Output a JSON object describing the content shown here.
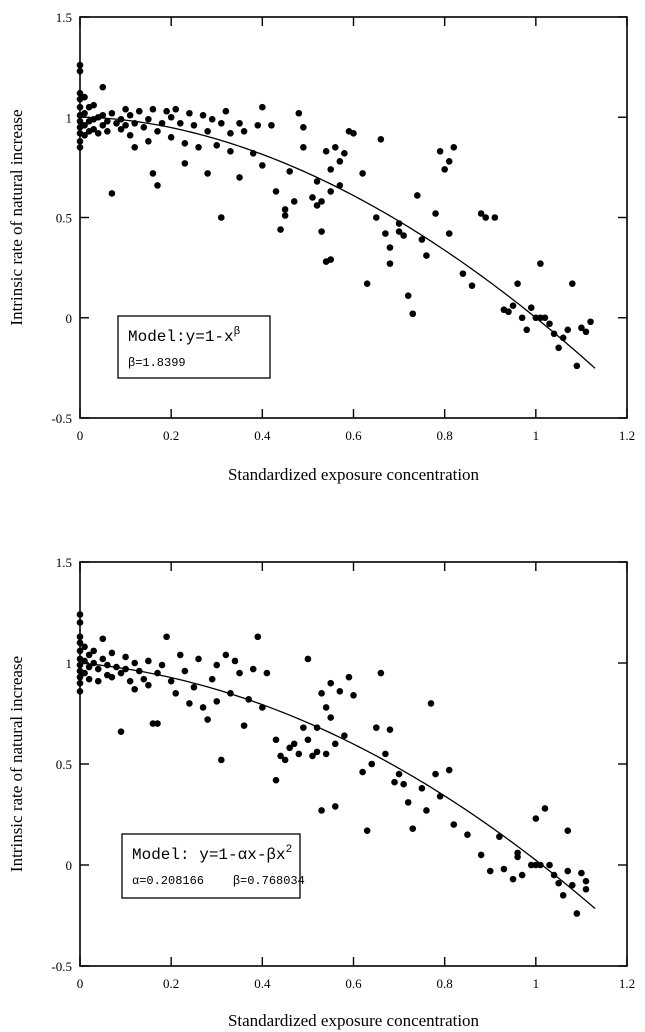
{
  "chart_data": [
    {
      "type": "scatter",
      "title": "",
      "xlabel": "Standardized exposure concentration",
      "ylabel": "Intrinsic rate of natural increase",
      "xlim": [
        0,
        1.2
      ],
      "ylim": [
        -0.5,
        1.5
      ],
      "x_ticks": [
        "0",
        "0.2",
        "0.4",
        "0.6",
        "0.8",
        "1",
        "1.2"
      ],
      "y_ticks": [
        "-0.5",
        "0",
        "0.5",
        "1",
        "1.5"
      ],
      "model_label": "Model:y=1-x",
      "model_superscript": "β",
      "params_text": "β=1.8399",
      "fit": {
        "form": "power",
        "beta": 1.8399,
        "x_range": [
          0,
          1.13
        ]
      },
      "points": [
        [
          0.0,
          1.26
        ],
        [
          0.0,
          1.23
        ],
        [
          0.0,
          1.12
        ],
        [
          0.0,
          1.09
        ],
        [
          0.0,
          1.05
        ],
        [
          0.0,
          1.01
        ],
        [
          0.0,
          0.98
        ],
        [
          0.0,
          0.95
        ],
        [
          0.0,
          0.92
        ],
        [
          0.0,
          0.88
        ],
        [
          0.0,
          0.85
        ],
        [
          0.01,
          1.1
        ],
        [
          0.01,
          1.02
        ],
        [
          0.01,
          0.96
        ],
        [
          0.01,
          0.91
        ],
        [
          0.02,
          1.05
        ],
        [
          0.02,
          0.98
        ],
        [
          0.02,
          0.93
        ],
        [
          0.03,
          1.06
        ],
        [
          0.03,
          0.99
        ],
        [
          0.03,
          0.94
        ],
        [
          0.04,
          1.0
        ],
        [
          0.04,
          0.92
        ],
        [
          0.05,
          1.15
        ],
        [
          0.05,
          1.01
        ],
        [
          0.05,
          0.96
        ],
        [
          0.06,
          0.98
        ],
        [
          0.06,
          0.93
        ],
        [
          0.07,
          1.02
        ],
        [
          0.07,
          0.62
        ],
        [
          0.08,
          0.97
        ],
        [
          0.09,
          0.99
        ],
        [
          0.09,
          0.94
        ],
        [
          0.1,
          1.04
        ],
        [
          0.1,
          0.96
        ],
        [
          0.11,
          1.01
        ],
        [
          0.11,
          0.91
        ],
        [
          0.12,
          0.97
        ],
        [
          0.12,
          0.85
        ],
        [
          0.13,
          1.03
        ],
        [
          0.14,
          0.95
        ],
        [
          0.15,
          0.99
        ],
        [
          0.15,
          0.88
        ],
        [
          0.16,
          1.04
        ],
        [
          0.16,
          0.72
        ],
        [
          0.17,
          0.66
        ],
        [
          0.17,
          0.93
        ],
        [
          0.18,
          0.97
        ],
        [
          0.19,
          1.03
        ],
        [
          0.2,
          0.9
        ],
        [
          0.2,
          1.0
        ],
        [
          0.21,
          1.04
        ],
        [
          0.22,
          0.97
        ],
        [
          0.23,
          0.77
        ],
        [
          0.23,
          0.87
        ],
        [
          0.24,
          1.02
        ],
        [
          0.25,
          0.96
        ],
        [
          0.26,
          0.85
        ],
        [
          0.27,
          1.01
        ],
        [
          0.28,
          0.93
        ],
        [
          0.28,
          0.72
        ],
        [
          0.29,
          0.99
        ],
        [
          0.3,
          0.86
        ],
        [
          0.31,
          0.5
        ],
        [
          0.31,
          0.97
        ],
        [
          0.32,
          1.03
        ],
        [
          0.33,
          0.92
        ],
        [
          0.33,
          0.83
        ],
        [
          0.35,
          0.97
        ],
        [
          0.35,
          0.7
        ],
        [
          0.36,
          0.93
        ],
        [
          0.38,
          0.82
        ],
        [
          0.39,
          0.96
        ],
        [
          0.4,
          1.05
        ],
        [
          0.4,
          0.76
        ],
        [
          0.42,
          0.96
        ],
        [
          0.43,
          0.63
        ],
        [
          0.44,
          0.44
        ],
        [
          0.45,
          0.51
        ],
        [
          0.45,
          0.54
        ],
        [
          0.46,
          0.73
        ],
        [
          0.47,
          0.58
        ],
        [
          0.48,
          1.02
        ],
        [
          0.49,
          0.85
        ],
        [
          0.49,
          0.95
        ],
        [
          0.51,
          0.6
        ],
        [
          0.52,
          0.56
        ],
        [
          0.52,
          0.68
        ],
        [
          0.53,
          0.58
        ],
        [
          0.53,
          0.43
        ],
        [
          0.54,
          0.28
        ],
        [
          0.54,
          0.83
        ],
        [
          0.55,
          0.74
        ],
        [
          0.55,
          0.63
        ],
        [
          0.55,
          0.29
        ],
        [
          0.56,
          0.85
        ],
        [
          0.57,
          0.78
        ],
        [
          0.57,
          0.66
        ],
        [
          0.58,
          0.82
        ],
        [
          0.59,
          0.93
        ],
        [
          0.6,
          0.92
        ],
        [
          0.62,
          0.72
        ],
        [
          0.63,
          0.17
        ],
        [
          0.65,
          0.5
        ],
        [
          0.66,
          0.89
        ],
        [
          0.67,
          0.42
        ],
        [
          0.68,
          0.35
        ],
        [
          0.68,
          0.27
        ],
        [
          0.7,
          0.47
        ],
        [
          0.7,
          0.43
        ],
        [
          0.71,
          0.41
        ],
        [
          0.72,
          0.11
        ],
        [
          0.73,
          0.02
        ],
        [
          0.74,
          0.61
        ],
        [
          0.75,
          0.39
        ],
        [
          0.76,
          0.31
        ],
        [
          0.78,
          0.52
        ],
        [
          0.79,
          0.83
        ],
        [
          0.8,
          0.74
        ],
        [
          0.81,
          0.78
        ],
        [
          0.81,
          0.42
        ],
        [
          0.82,
          0.85
        ],
        [
          0.84,
          0.22
        ],
        [
          0.86,
          0.16
        ],
        [
          0.88,
          0.52
        ],
        [
          0.89,
          0.5
        ],
        [
          0.91,
          0.5
        ],
        [
          0.93,
          0.04
        ],
        [
          0.94,
          0.03
        ],
        [
          0.95,
          0.06
        ],
        [
          0.96,
          0.17
        ],
        [
          0.97,
          0.0
        ],
        [
          0.98,
          -0.06
        ],
        [
          0.99,
          0.05
        ],
        [
          1.0,
          0.0
        ],
        [
          1.01,
          0.0
        ],
        [
          1.01,
          0.27
        ],
        [
          1.02,
          0.0
        ],
        [
          1.03,
          -0.03
        ],
        [
          1.04,
          -0.08
        ],
        [
          1.05,
          -0.15
        ],
        [
          1.06,
          -0.1
        ],
        [
          1.07,
          -0.06
        ],
        [
          1.08,
          0.17
        ],
        [
          1.09,
          -0.24
        ],
        [
          1.1,
          -0.05
        ],
        [
          1.11,
          -0.07
        ],
        [
          1.12,
          -0.02
        ]
      ]
    },
    {
      "type": "scatter",
      "title": "",
      "xlabel": "Standardized exposure concentration",
      "ylabel": "Intrinsic rate of natural increase",
      "xlim": [
        0,
        1.2
      ],
      "ylim": [
        -0.5,
        1.5
      ],
      "x_ticks": [
        "0",
        "0.2",
        "0.4",
        "0.6",
        "0.8",
        "1",
        "1.2"
      ],
      "y_ticks": [
        "-0.5",
        "0",
        "0.5",
        "1",
        "1.5"
      ],
      "model_label": "Model: y=1-αx-βx",
      "model_superscript": "2",
      "params_text": "α=0.208166    β=0.768034",
      "fit": {
        "form": "quadratic",
        "alpha": 0.208166,
        "beta": 0.768034,
        "x_range": [
          0,
          1.13
        ]
      },
      "points": [
        [
          0.0,
          1.24
        ],
        [
          0.0,
          1.2
        ],
        [
          0.0,
          1.13
        ],
        [
          0.0,
          1.1
        ],
        [
          0.0,
          1.06
        ],
        [
          0.0,
          1.02
        ],
        [
          0.0,
          0.99
        ],
        [
          0.0,
          0.96
        ],
        [
          0.0,
          0.93
        ],
        [
          0.0,
          0.9
        ],
        [
          0.0,
          0.86
        ],
        [
          0.01,
          1.08
        ],
        [
          0.01,
          1.01
        ],
        [
          0.01,
          0.95
        ],
        [
          0.02,
          1.04
        ],
        [
          0.02,
          0.98
        ],
        [
          0.02,
          0.92
        ],
        [
          0.03,
          1.06
        ],
        [
          0.03,
          1.0
        ],
        [
          0.04,
          0.97
        ],
        [
          0.04,
          0.91
        ],
        [
          0.05,
          1.12
        ],
        [
          0.05,
          1.02
        ],
        [
          0.06,
          0.99
        ],
        [
          0.06,
          0.94
        ],
        [
          0.07,
          1.05
        ],
        [
          0.07,
          0.93
        ],
        [
          0.08,
          0.98
        ],
        [
          0.09,
          0.95
        ],
        [
          0.09,
          0.66
        ],
        [
          0.1,
          1.03
        ],
        [
          0.1,
          0.97
        ],
        [
          0.11,
          0.91
        ],
        [
          0.12,
          1.0
        ],
        [
          0.12,
          0.87
        ],
        [
          0.13,
          0.96
        ],
        [
          0.14,
          0.92
        ],
        [
          0.15,
          1.01
        ],
        [
          0.15,
          0.89
        ],
        [
          0.16,
          0.7
        ],
        [
          0.17,
          0.7
        ],
        [
          0.17,
          0.95
        ],
        [
          0.18,
          0.99
        ],
        [
          0.19,
          1.13
        ],
        [
          0.2,
          0.91
        ],
        [
          0.21,
          0.85
        ],
        [
          0.22,
          1.04
        ],
        [
          0.23,
          0.96
        ],
        [
          0.24,
          0.8
        ],
        [
          0.25,
          0.88
        ],
        [
          0.26,
          1.02
        ],
        [
          0.27,
          0.78
        ],
        [
          0.28,
          0.72
        ],
        [
          0.29,
          0.92
        ],
        [
          0.3,
          0.99
        ],
        [
          0.3,
          0.81
        ],
        [
          0.31,
          0.52
        ],
        [
          0.32,
          1.04
        ],
        [
          0.33,
          0.85
        ],
        [
          0.34,
          1.01
        ],
        [
          0.35,
          0.95
        ],
        [
          0.36,
          0.69
        ],
        [
          0.37,
          0.82
        ],
        [
          0.38,
          0.97
        ],
        [
          0.39,
          1.13
        ],
        [
          0.4,
          0.78
        ],
        [
          0.41,
          0.95
        ],
        [
          0.43,
          0.42
        ],
        [
          0.43,
          0.62
        ],
        [
          0.44,
          0.54
        ],
        [
          0.45,
          0.52
        ],
        [
          0.46,
          0.58
        ],
        [
          0.47,
          0.6
        ],
        [
          0.48,
          0.55
        ],
        [
          0.49,
          0.68
        ],
        [
          0.5,
          1.02
        ],
        [
          0.5,
          0.62
        ],
        [
          0.51,
          0.54
        ],
        [
          0.52,
          0.56
        ],
        [
          0.52,
          0.68
        ],
        [
          0.53,
          0.85
        ],
        [
          0.53,
          0.27
        ],
        [
          0.54,
          0.78
        ],
        [
          0.54,
          0.55
        ],
        [
          0.55,
          0.9
        ],
        [
          0.55,
          0.73
        ],
        [
          0.56,
          0.6
        ],
        [
          0.56,
          0.29
        ],
        [
          0.57,
          0.86
        ],
        [
          0.58,
          0.64
        ],
        [
          0.59,
          0.93
        ],
        [
          0.6,
          0.84
        ],
        [
          0.62,
          0.46
        ],
        [
          0.63,
          0.17
        ],
        [
          0.64,
          0.5
        ],
        [
          0.65,
          0.68
        ],
        [
          0.66,
          0.95
        ],
        [
          0.67,
          0.55
        ],
        [
          0.68,
          0.67
        ],
        [
          0.69,
          0.41
        ],
        [
          0.7,
          0.45
        ],
        [
          0.71,
          0.4
        ],
        [
          0.72,
          0.31
        ],
        [
          0.73,
          0.18
        ],
        [
          0.75,
          0.38
        ],
        [
          0.76,
          0.27
        ],
        [
          0.77,
          0.8
        ],
        [
          0.78,
          0.45
        ],
        [
          0.79,
          0.34
        ],
        [
          0.81,
          0.47
        ],
        [
          0.82,
          0.2
        ],
        [
          0.85,
          0.15
        ],
        [
          0.88,
          0.05
        ],
        [
          0.9,
          -0.03
        ],
        [
          0.92,
          0.14
        ],
        [
          0.93,
          -0.02
        ],
        [
          0.95,
          -0.07
        ],
        [
          0.96,
          0.04
        ],
        [
          0.96,
          0.06
        ],
        [
          0.97,
          -0.05
        ],
        [
          0.99,
          0.0
        ],
        [
          1.0,
          0.0
        ],
        [
          1.0,
          0.23
        ],
        [
          1.01,
          0.0
        ],
        [
          1.02,
          0.28
        ],
        [
          1.03,
          0.0
        ],
        [
          1.04,
          -0.05
        ],
        [
          1.05,
          -0.09
        ],
        [
          1.06,
          -0.15
        ],
        [
          1.07,
          -0.03
        ],
        [
          1.07,
          0.17
        ],
        [
          1.08,
          -0.1
        ],
        [
          1.09,
          -0.24
        ],
        [
          1.1,
          -0.04
        ],
        [
          1.11,
          -0.08
        ],
        [
          1.11,
          -0.12
        ]
      ]
    }
  ]
}
